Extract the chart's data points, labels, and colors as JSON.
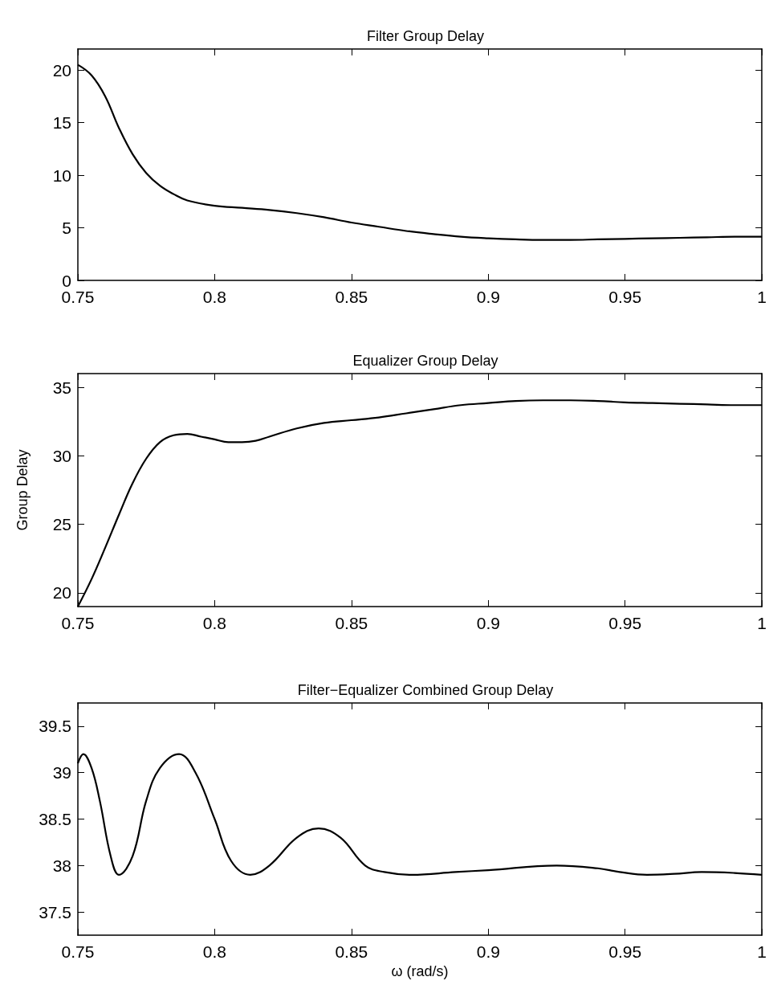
{
  "chart_data": [
    {
      "type": "line",
      "title": "Filter Group Delay",
      "xlim": [
        0.75,
        1
      ],
      "xticks": [
        0.75,
        0.8,
        0.85,
        0.9,
        0.95,
        1
      ],
      "ylim": [
        0,
        22
      ],
      "yticks": [
        0,
        5,
        10,
        15,
        20
      ],
      "grid": false,
      "marker": "none",
      "line_style": "solid",
      "series": [
        {
          "color": "#000000",
          "x": [
            0.75,
            0.755,
            0.76,
            0.765,
            0.77,
            0.775,
            0.78,
            0.785,
            0.79,
            0.8,
            0.81,
            0.82,
            0.83,
            0.84,
            0.85,
            0.86,
            0.87,
            0.88,
            0.89,
            0.9,
            0.91,
            0.92,
            0.93,
            0.94,
            0.95,
            0.96,
            0.97,
            0.98,
            0.99,
            1
          ],
          "values": [
            20.5,
            19.5,
            17.5,
            14.5,
            12,
            10.2,
            9,
            8.2,
            7.6,
            7.1,
            6.9,
            6.7,
            6.4,
            6,
            5.5,
            5.1,
            4.7,
            4.4,
            4.15,
            4,
            3.9,
            3.85,
            3.85,
            3.9,
            3.95,
            4,
            4.05,
            4.1,
            4.15,
            4.15
          ]
        }
      ]
    },
    {
      "type": "line",
      "title": "Equalizer Group Delay",
      "ylabel": "Group Delay",
      "xlim": [
        0.75,
        1
      ],
      "xticks": [
        0.75,
        0.8,
        0.85,
        0.9,
        0.95,
        1
      ],
      "ylim": [
        19,
        36
      ],
      "yticks": [
        20,
        25,
        30,
        35
      ],
      "grid": false,
      "marker": "none",
      "line_style": "solid",
      "series": [
        {
          "color": "#000000",
          "x": [
            0.75,
            0.755,
            0.76,
            0.765,
            0.77,
            0.775,
            0.78,
            0.785,
            0.79,
            0.795,
            0.8,
            0.805,
            0.81,
            0.815,
            0.82,
            0.83,
            0.84,
            0.85,
            0.86,
            0.87,
            0.88,
            0.89,
            0.9,
            0.91,
            0.92,
            0.93,
            0.94,
            0.95,
            0.96,
            0.97,
            0.98,
            0.99,
            1
          ],
          "values": [
            19,
            21,
            23.3,
            25.7,
            28,
            29.8,
            31,
            31.5,
            31.6,
            31.4,
            31.2,
            31,
            31,
            31.1,
            31.4,
            32,
            32.4,
            32.6,
            32.8,
            33.1,
            33.4,
            33.7,
            33.85,
            34,
            34.05,
            34.05,
            34,
            33.9,
            33.85,
            33.8,
            33.75,
            33.7,
            33.7
          ]
        }
      ]
    },
    {
      "type": "line",
      "title": "Filter−Equalizer Combined Group Delay",
      "xlabel": "ω (rad/s)",
      "xlim": [
        0.75,
        1
      ],
      "xticks": [
        0.75,
        0.8,
        0.85,
        0.9,
        0.95,
        1
      ],
      "ylim": [
        37.25,
        39.75
      ],
      "yticks": [
        37.5,
        38,
        38.5,
        39,
        39.5
      ],
      "grid": false,
      "marker": "none",
      "line_style": "solid",
      "series": [
        {
          "color": "#000000",
          "x": [
            0.75,
            0.752,
            0.755,
            0.758,
            0.762,
            0.765,
            0.77,
            0.775,
            0.78,
            0.787,
            0.793,
            0.8,
            0.806,
            0.813,
            0.82,
            0.83,
            0.838,
            0.846,
            0.855,
            0.862,
            0.872,
            0.888,
            0.9,
            0.925,
            0.94,
            0.948,
            0.958,
            0.968,
            0.978,
            0.99,
            1
          ],
          "values": [
            39.1,
            39.2,
            39.05,
            38.7,
            38.1,
            37.9,
            38.1,
            38.7,
            39.05,
            39.2,
            39,
            38.5,
            38.05,
            37.9,
            38,
            38.3,
            38.4,
            38.3,
            38,
            37.93,
            37.9,
            37.93,
            37.95,
            38,
            37.97,
            37.93,
            37.9,
            37.91,
            37.93,
            37.92,
            37.9
          ]
        }
      ]
    }
  ]
}
